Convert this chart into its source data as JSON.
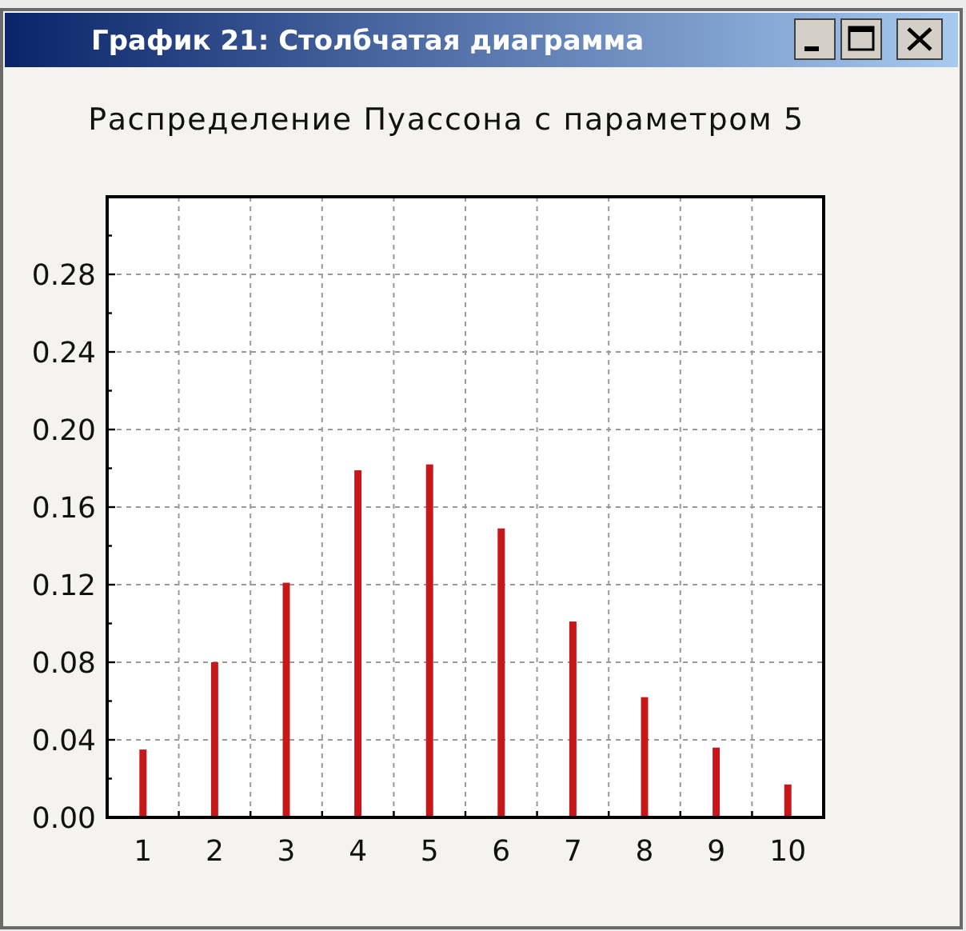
{
  "chart_data": {
    "type": "bar",
    "title": "Распределение Пуассона с параметром 5",
    "annotations": [
      "График 21: Столбчатая диаграмма"
    ],
    "categories": [
      "1",
      "2",
      "3",
      "4",
      "5",
      "6",
      "7",
      "8",
      "9",
      "10"
    ],
    "values": [
      0.035,
      0.08,
      0.121,
      0.179,
      0.182,
      0.149,
      0.101,
      0.062,
      0.036,
      0.017
    ],
    "color": "#c8171a",
    "ylim": [
      0,
      0.32
    ],
    "yticks": [
      {
        "value": 0,
        "label": "0.00"
      },
      {
        "value": 0.02,
        "label": null
      },
      {
        "value": 0.04,
        "label": "0.04"
      },
      {
        "value": 0.06,
        "label": null
      },
      {
        "value": 0.08,
        "label": "0.08"
      },
      {
        "value": 0.1,
        "label": null
      },
      {
        "value": 0.12,
        "label": "0.12"
      },
      {
        "value": 0.14,
        "label": null
      },
      {
        "value": 0.16,
        "label": "0.16"
      },
      {
        "value": 0.18,
        "label": null
      },
      {
        "value": 0.2,
        "label": "0.20"
      },
      {
        "value": 0.22,
        "label": null
      },
      {
        "value": 0.24,
        "label": "0.24"
      },
      {
        "value": 0.26,
        "label": null
      },
      {
        "value": 0.28,
        "label": "0.28"
      },
      {
        "value": 0.3,
        "label": null
      }
    ],
    "grid": true
  }
}
